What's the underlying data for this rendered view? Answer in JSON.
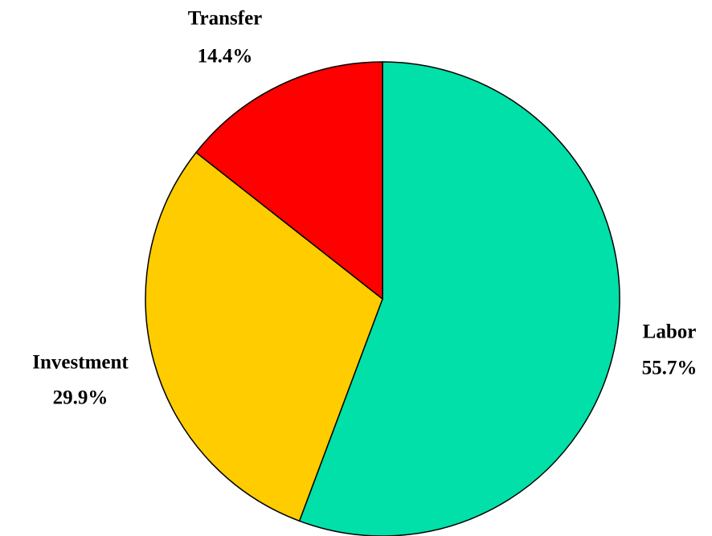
{
  "chart_data": {
    "type": "pie",
    "categories": [
      "Labor",
      "Investment",
      "Transfer"
    ],
    "values": [
      55.7,
      29.9,
      14.4
    ],
    "value_labels": [
      "55.7%",
      "29.9%",
      "14.4%"
    ],
    "colors": [
      "#00e0a8",
      "#ffcc00",
      "#ff0000"
    ]
  }
}
